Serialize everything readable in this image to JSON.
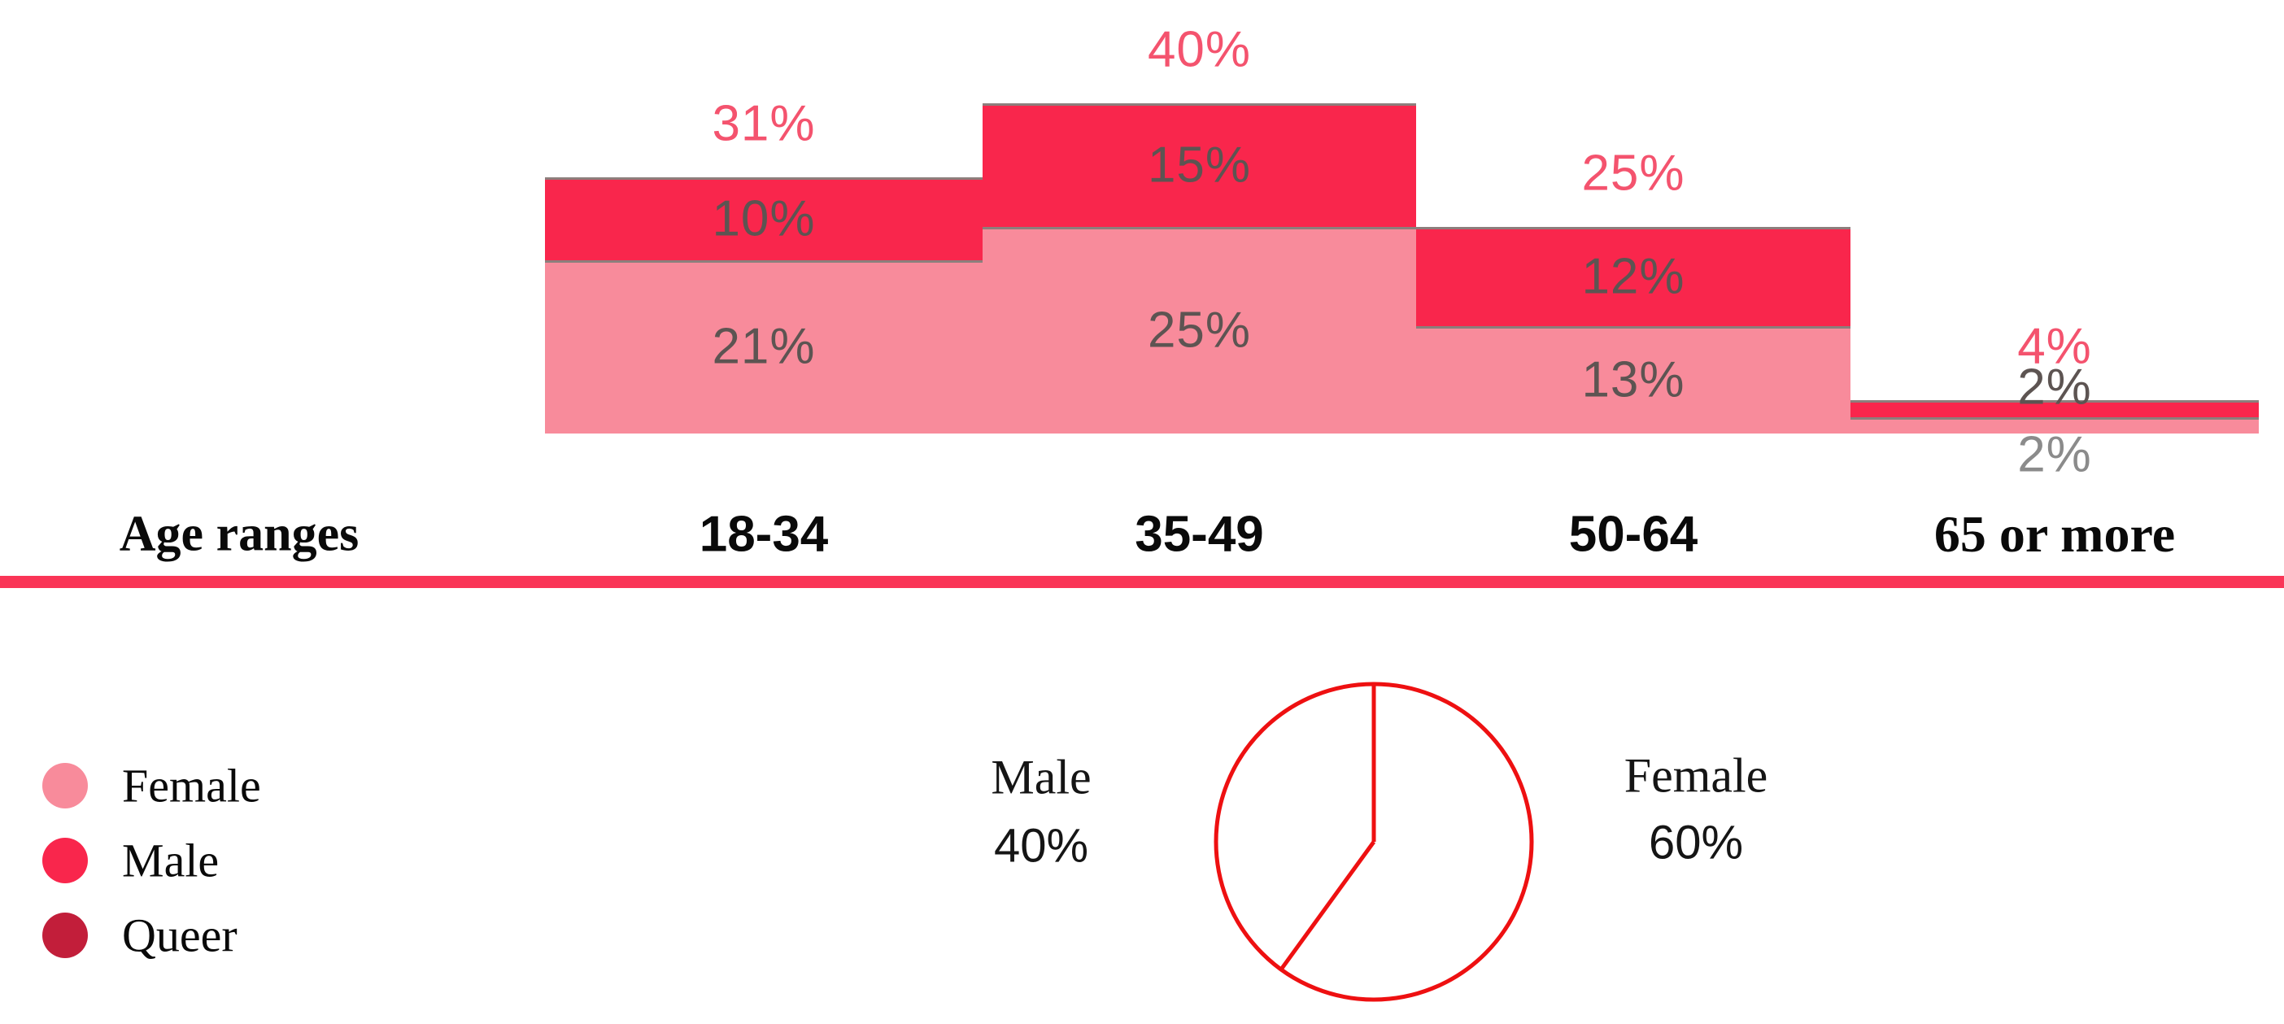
{
  "figure": {
    "background": "#ffffff"
  },
  "colors": {
    "female": "#F88B9B",
    "male": "#F9264C",
    "queer": "#C21E3A",
    "total_label": "#F4536E",
    "inner_label": "#5D5452",
    "below_label": "#8B8B8B",
    "segment_border": "#8D7E7C",
    "axis_line": "#FA3557",
    "pie_stroke": "#EE1011",
    "text": "#0A0A0A"
  },
  "axis": {
    "title": "Age ranges",
    "categories": [
      "18-34",
      "35-49",
      "50-64",
      "65 or more"
    ]
  },
  "legend": {
    "items": [
      {
        "label": "Female",
        "color": "#F88B9B"
      },
      {
        "label": "Male",
        "color": "#F9264C"
      },
      {
        "label": "Queer",
        "color": "#C21E3A"
      }
    ]
  },
  "chart_data": [
    {
      "type": "bar",
      "subtype": "stacked-step-columns",
      "title": "",
      "xlabel": "Age ranges",
      "ylabel": "",
      "grid": false,
      "ylim": [
        0,
        42
      ],
      "categories": [
        "18-34",
        "35-49",
        "50-64",
        "65 or more"
      ],
      "series": [
        {
          "name": "Female",
          "color": "#F88B9B",
          "values": [
            21,
            25,
            13,
            2
          ]
        },
        {
          "name": "Male",
          "color": "#F9264C",
          "values": [
            10,
            15,
            12,
            2
          ]
        }
      ],
      "totals": [
        31,
        40,
        25,
        4
      ],
      "unit": "%",
      "legend_entries": [
        "Female",
        "Male",
        "Queer"
      ],
      "legend_position": "bottom-left"
    },
    {
      "type": "pie",
      "style": "outline-only",
      "stroke": "#EE1011",
      "direction": "clockwise",
      "start_angle_deg": 0,
      "slices": [
        {
          "label": "Female",
          "value": 60,
          "label_side": "right"
        },
        {
          "label": "Male",
          "value": 40,
          "label_side": "left"
        }
      ]
    }
  ]
}
